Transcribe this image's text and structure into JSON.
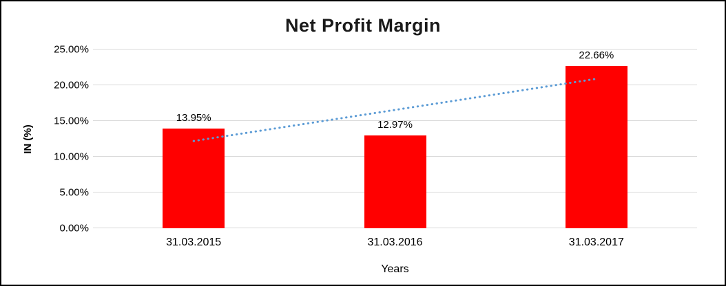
{
  "chart_data": {
    "type": "bar",
    "title": "Net Profit Margin",
    "categories": [
      "31.03.2015",
      "31.03.2016",
      "31.03.2017"
    ],
    "values": [
      13.95,
      12.97,
      22.66
    ],
    "data_labels": [
      "13.95%",
      "12.97%",
      "22.66%"
    ],
    "xlabel": "Years",
    "ylabel": "IN (%)",
    "ylim": [
      0,
      25
    ],
    "ytick_step": 5,
    "ytick_labels": [
      "0.00%",
      "5.00%",
      "10.00%",
      "15.00%",
      "20.00%",
      "25.00%"
    ],
    "grid": true,
    "gridline_color": "#d9d9d9",
    "bar_color": "#ff0000",
    "legend": "none",
    "trendline": {
      "style": "dotted",
      "color": "#5b9bd5",
      "start_value": 12.2,
      "end_value": 20.9
    }
  }
}
